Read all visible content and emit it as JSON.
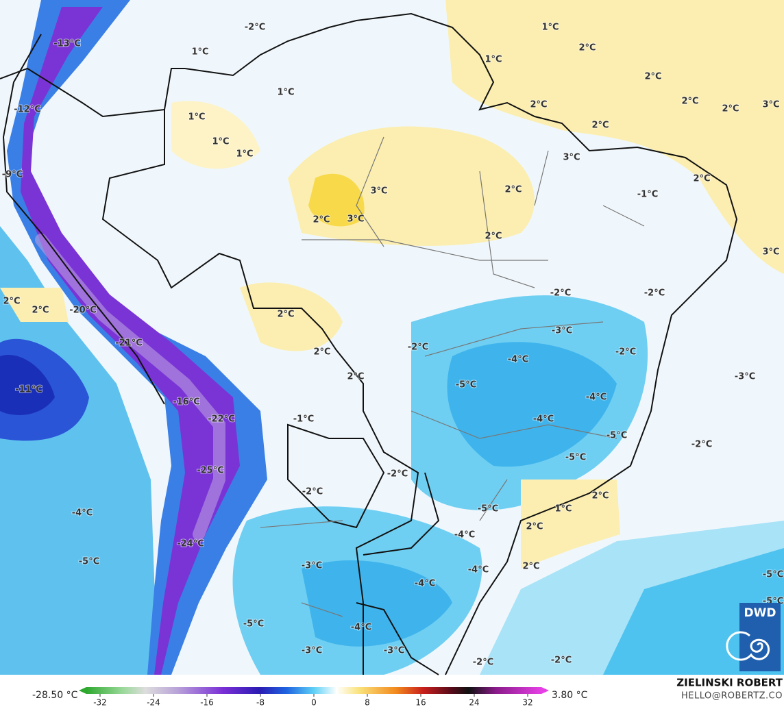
{
  "map": {
    "labels": [
      "-13°C",
      "-2°C",
      "1°C",
      "1°C",
      "2°C",
      "1°C",
      "2°C",
      "1°C",
      "2°C",
      "2°C",
      "3°C",
      "-12°C",
      "2°C",
      "2°C",
      "1°C",
      "1°C",
      "1°C",
      "3°C",
      "-9°C",
      "2°C",
      "3°C",
      "2°C",
      "-1°C",
      "2°C",
      "3°C",
      "2°C",
      "3°C",
      "-2°C",
      "-2°C",
      "2°C",
      "2°C",
      "-20°C",
      "2°C",
      "-3°C",
      "-21°C",
      "2°C",
      "-2°C",
      "-2°C",
      "-4°C",
      "-11°C",
      "2°C",
      "-5°C",
      "-3°C",
      "-16°C",
      "-4°C",
      "-22°C",
      "-4°C",
      "-1°C",
      "-5°C",
      "-2°C",
      "-5°C",
      "-25°C",
      "-2°C",
      "-2°C",
      "2°C",
      "-4°C",
      "1°C",
      "-5°C",
      "2°C",
      "-4°C",
      "-24°C",
      "-5°C",
      "-3°C",
      "-4°C",
      "2°C",
      "-5°C",
      "-4°C",
      "-5°C",
      "-5°C",
      "-4°C",
      "-3°C",
      "-3°C",
      "-2°C",
      "-2°C"
    ],
    "colorbar": {
      "min_label": "-28.50 °C",
      "max_label": "3.80 °C",
      "ticks": [
        -32,
        -24,
        -16,
        -8,
        0,
        8,
        16,
        24,
        32
      ]
    },
    "credit": {
      "name": "ZIELINSKI ROBERT",
      "email": "HELLO@ROBERTZ.CO"
    },
    "logo": "DWD"
  }
}
